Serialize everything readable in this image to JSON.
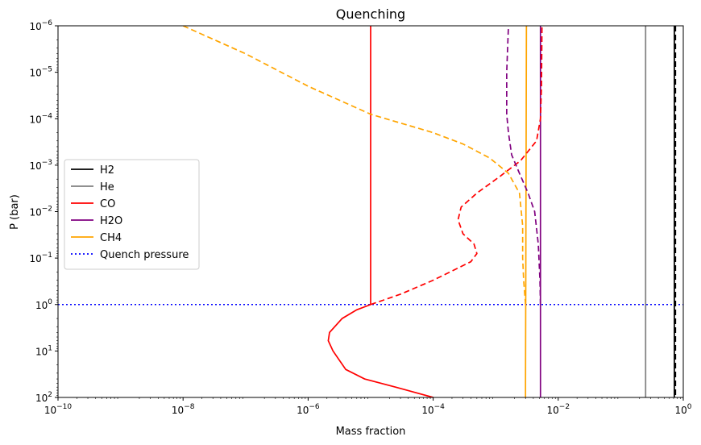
{
  "chart_data": {
    "type": "line",
    "title": "Quenching",
    "xlabel": "Mass fraction",
    "ylabel": "P (bar)",
    "xscale": "log",
    "yscale": "log",
    "xlim": [
      1e-10,
      1
    ],
    "ylim": [
      100,
      1e-06
    ],
    "y_inverted": true,
    "grid": false,
    "legend_position": "center-left",
    "x_ticks": [
      {
        "value": 1e-10,
        "base": "10",
        "exp": "−10"
      },
      {
        "value": 1e-08,
        "base": "10",
        "exp": "−8"
      },
      {
        "value": 1e-06,
        "base": "10",
        "exp": "−6"
      },
      {
        "value": 0.0001,
        "base": "10",
        "exp": "−4"
      },
      {
        "value": 0.01,
        "base": "10",
        "exp": "−2"
      },
      {
        "value": 1,
        "base": "10",
        "exp": "0"
      }
    ],
    "y_ticks": [
      {
        "value": 1e-06,
        "base": "10",
        "exp": "−6"
      },
      {
        "value": 1e-05,
        "base": "10",
        "exp": "−5"
      },
      {
        "value": 0.0001,
        "base": "10",
        "exp": "−4"
      },
      {
        "value": 0.001,
        "base": "10",
        "exp": "−3"
      },
      {
        "value": 0.01,
        "base": "10",
        "exp": "−2"
      },
      {
        "value": 0.1,
        "base": "10",
        "exp": "−1"
      },
      {
        "value": 1,
        "base": "10",
        "exp": "0"
      },
      {
        "value": 10,
        "base": "10",
        "exp": "1"
      },
      {
        "value": 100,
        "base": "10",
        "exp": "2"
      }
    ],
    "series": [
      {
        "name": "H2",
        "color": "#000000",
        "style": "solid",
        "in_legend": true,
        "x": [
          0.72,
          0.72
        ],
        "y": [
          1e-06,
          100
        ]
      },
      {
        "name": "He",
        "color": "#808080",
        "style": "solid",
        "in_legend": true,
        "x": [
          0.25,
          0.25
        ],
        "y": [
          1e-06,
          100
        ]
      },
      {
        "name": "CO",
        "color": "#ff0000",
        "style": "solid",
        "in_legend": true,
        "x": [
          0.0001,
          2.5e-05,
          8e-06,
          4e-06,
          2.5e-06,
          2.1e-06,
          2.2e-06,
          3.5e-06,
          6e-06,
          1e-05,
          1e-05
        ],
        "y": [
          100,
          60,
          40,
          25,
          10,
          6,
          4,
          2,
          1.3,
          1,
          1e-06
        ]
      },
      {
        "name": "H2O",
        "color": "#800080",
        "style": "solid",
        "in_legend": true,
        "x": [
          0.0052,
          0.0052
        ],
        "y": [
          1e-06,
          100
        ]
      },
      {
        "name": "CH4",
        "color": "#ffa500",
        "style": "solid",
        "in_legend": true,
        "x": [
          0.003,
          0.003,
          0.0031
        ],
        "y": [
          100,
          50,
          1e-06
        ]
      },
      {
        "name": "H2 (dashed)",
        "color": "#000000",
        "style": "dashed",
        "in_legend": false,
        "x": [
          0.75,
          0.75
        ],
        "y": [
          1e-06,
          100
        ]
      },
      {
        "name": "CO (dashed)",
        "color": "#ff0000",
        "style": "dashed",
        "in_legend": false,
        "x": [
          1e-05,
          3e-05,
          0.0001,
          0.0004,
          0.0005,
          0.00045,
          0.0003,
          0.00025,
          0.00028,
          0.0005,
          0.0012,
          0.0025,
          0.0045,
          0.0052,
          0.0054,
          0.0055
        ],
        "y": [
          1,
          0.6,
          0.3,
          0.12,
          0.08,
          0.05,
          0.03,
          0.015,
          0.008,
          0.004,
          0.0017,
          0.0008,
          0.0003,
          0.0001,
          2e-05,
          1e-06
        ]
      },
      {
        "name": "H2O (dashed)",
        "color": "#800080",
        "style": "dashed",
        "in_legend": false,
        "x": [
          0.0052,
          0.0051,
          0.0048,
          0.0042,
          0.0033,
          0.0024,
          0.0018,
          0.0016,
          0.0015,
          0.0015,
          0.0016
        ],
        "y": [
          1,
          0.3,
          0.05,
          0.01,
          0.004,
          0.0015,
          0.0006,
          0.0002,
          8e-05,
          1e-05,
          1e-06
        ]
      },
      {
        "name": "CH4 (dashed)",
        "color": "#ffa500",
        "style": "dashed",
        "in_legend": false,
        "x": [
          0.003,
          0.0028,
          0.0027,
          0.0027,
          0.0024,
          0.0016,
          0.0008,
          0.0003,
          0.0001,
          1e-05,
          1e-06,
          1e-07,
          1e-08
        ],
        "y": [
          1,
          0.3,
          0.1,
          0.02,
          0.004,
          0.0015,
          0.0007,
          0.00035,
          0.0002,
          8e-05,
          2e-05,
          4e-06,
          1e-06
        ]
      }
    ],
    "hlines": [
      {
        "name": "Quench pressure",
        "y": 1,
        "color": "#0000ff",
        "style": "dotted",
        "in_legend": true
      }
    ]
  }
}
